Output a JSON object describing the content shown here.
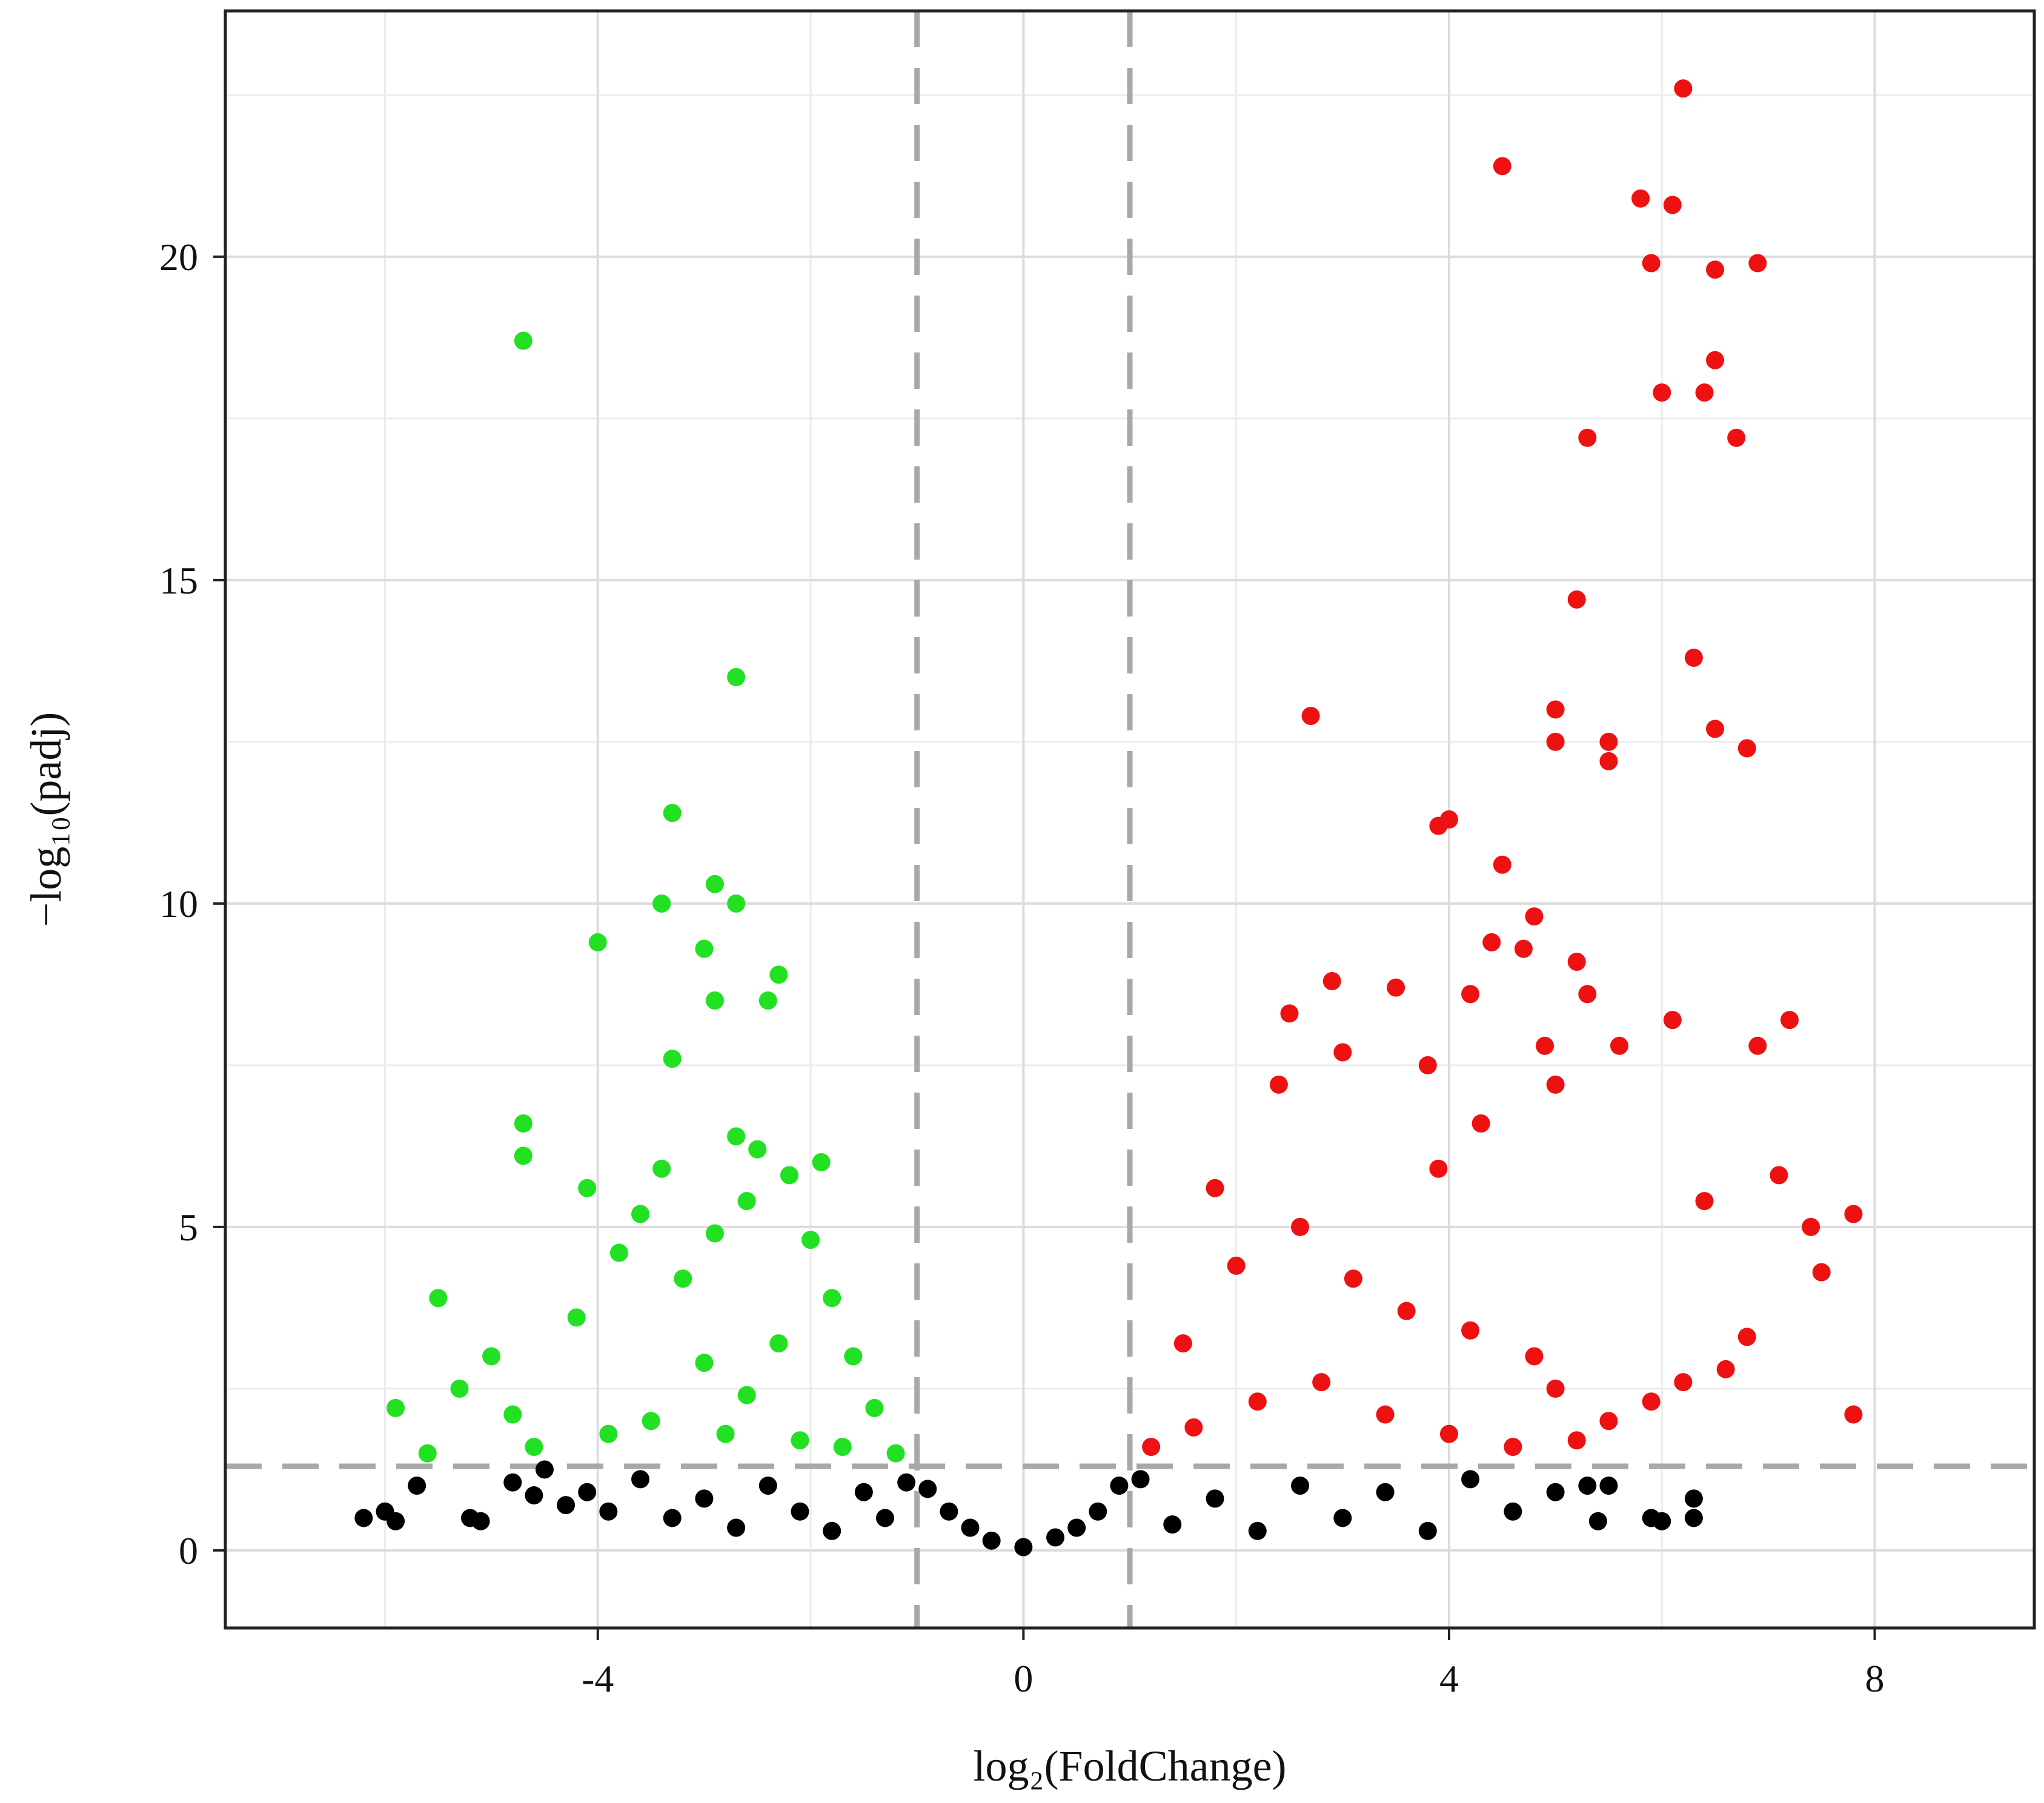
{
  "chart_data": {
    "type": "scatter",
    "title": "",
    "xlabel": "log₂(FoldChange)",
    "ylabel": "−log₁₀(padj)",
    "xlim": [
      -7.5,
      9.5
    ],
    "ylim": [
      -1.2,
      23.8
    ],
    "x_ticks": [
      -4,
      0,
      4,
      8
    ],
    "x_tick_labels": [
      "-4",
      "0",
      "4",
      "8"
    ],
    "y_ticks": [
      0,
      5,
      10,
      15,
      20
    ],
    "y_tick_labels": [
      "0",
      "5",
      "10",
      "15",
      "20"
    ],
    "grid": true,
    "legend": "none",
    "thresholds": {
      "log2fc": [
        -1,
        1
      ],
      "neg_log10_padj": 1.3
    },
    "series": [
      {
        "color": "#000000",
        "points": [
          [
            -6.2,
            0.5
          ],
          [
            -6.0,
            0.6
          ],
          [
            -5.9,
            0.45
          ],
          [
            -5.7,
            1.0
          ],
          [
            -5.2,
            0.5
          ],
          [
            -5.1,
            0.45
          ],
          [
            -4.8,
            1.05
          ],
          [
            -4.6,
            0.85
          ],
          [
            -4.5,
            1.25
          ],
          [
            -4.3,
            0.7
          ],
          [
            -4.1,
            0.9
          ],
          [
            -3.9,
            0.6
          ],
          [
            -3.6,
            1.1
          ],
          [
            -3.3,
            0.5
          ],
          [
            -3.0,
            0.8
          ],
          [
            -2.7,
            0.35
          ],
          [
            -2.4,
            1.0
          ],
          [
            -2.1,
            0.6
          ],
          [
            -1.8,
            0.3
          ],
          [
            -1.5,
            0.9
          ],
          [
            -1.3,
            0.5
          ],
          [
            -1.1,
            1.05
          ],
          [
            -0.9,
            0.95
          ],
          [
            -0.7,
            0.6
          ],
          [
            -0.5,
            0.35
          ],
          [
            -0.3,
            0.15
          ],
          [
            0.0,
            0.05
          ],
          [
            0.3,
            0.2
          ],
          [
            0.5,
            0.35
          ],
          [
            0.7,
            0.6
          ],
          [
            0.9,
            1.0
          ],
          [
            1.1,
            1.1
          ],
          [
            1.4,
            0.4
          ],
          [
            1.8,
            0.8
          ],
          [
            2.2,
            0.3
          ],
          [
            2.6,
            1.0
          ],
          [
            3.0,
            0.5
          ],
          [
            3.4,
            0.9
          ],
          [
            3.8,
            0.3
          ],
          [
            4.2,
            1.1
          ],
          [
            4.6,
            0.6
          ],
          [
            5.0,
            0.9
          ],
          [
            5.3,
            1.0
          ],
          [
            5.4,
            0.45
          ],
          [
            5.5,
            1.0
          ],
          [
            5.9,
            0.5
          ],
          [
            6.0,
            0.45
          ],
          [
            6.3,
            0.5
          ],
          [
            6.3,
            0.8
          ]
        ]
      },
      {
        "color": "#22e022",
        "points": [
          [
            -4.7,
            18.7
          ],
          [
            -2.7,
            13.5
          ],
          [
            -3.3,
            11.4
          ],
          [
            -2.9,
            10.3
          ],
          [
            -2.7,
            10.0
          ],
          [
            -3.4,
            10.0
          ],
          [
            -4.0,
            9.4
          ],
          [
            -3.0,
            9.3
          ],
          [
            -2.3,
            8.9
          ],
          [
            -2.4,
            8.5
          ],
          [
            -2.9,
            8.5
          ],
          [
            -3.3,
            7.6
          ],
          [
            -4.7,
            6.6
          ],
          [
            -4.7,
            6.1
          ],
          [
            -2.7,
            6.4
          ],
          [
            -3.4,
            5.9
          ],
          [
            -4.1,
            5.6
          ],
          [
            -5.5,
            3.9
          ],
          [
            -5.0,
            3.0
          ],
          [
            -4.2,
            3.6
          ],
          [
            -5.3,
            2.5
          ],
          [
            -5.9,
            2.2
          ],
          [
            -4.8,
            2.1
          ],
          [
            -4.6,
            1.6
          ],
          [
            -5.6,
            1.5
          ],
          [
            -3.9,
            1.8
          ],
          [
            -3.5,
            2.0
          ],
          [
            -3.8,
            4.6
          ],
          [
            -3.2,
            4.2
          ],
          [
            -2.9,
            4.9
          ],
          [
            -2.6,
            5.4
          ],
          [
            -2.2,
            5.8
          ],
          [
            -2.0,
            4.8
          ],
          [
            -1.8,
            3.9
          ],
          [
            -1.6,
            3.0
          ],
          [
            -1.4,
            2.2
          ],
          [
            -1.2,
            1.5
          ],
          [
            -2.3,
            3.2
          ],
          [
            -2.6,
            2.4
          ],
          [
            -3.0,
            2.9
          ],
          [
            -2.1,
            1.7
          ],
          [
            -1.7,
            1.6
          ],
          [
            -2.5,
            6.2
          ],
          [
            -1.9,
            6.0
          ],
          [
            -3.6,
            5.2
          ],
          [
            -2.8,
            1.8
          ]
        ]
      },
      {
        "color": "#ee1111",
        "points": [
          [
            6.2,
            22.6
          ],
          [
            4.5,
            21.4
          ],
          [
            5.8,
            20.9
          ],
          [
            6.1,
            20.8
          ],
          [
            5.9,
            19.9
          ],
          [
            6.5,
            19.8
          ],
          [
            6.9,
            19.9
          ],
          [
            6.5,
            18.4
          ],
          [
            6.0,
            17.9
          ],
          [
            6.4,
            17.9
          ],
          [
            5.3,
            17.2
          ],
          [
            6.7,
            17.2
          ],
          [
            5.2,
            14.7
          ],
          [
            6.3,
            13.8
          ],
          [
            2.7,
            12.9
          ],
          [
            5.0,
            13.0
          ],
          [
            5.0,
            12.5
          ],
          [
            5.5,
            12.5
          ],
          [
            6.5,
            12.7
          ],
          [
            6.8,
            12.4
          ],
          [
            5.5,
            12.2
          ],
          [
            4.0,
            11.3
          ],
          [
            3.9,
            11.2
          ],
          [
            4.5,
            10.6
          ],
          [
            4.8,
            9.8
          ],
          [
            5.2,
            9.1
          ],
          [
            4.4,
            9.4
          ],
          [
            4.7,
            9.3
          ],
          [
            2.9,
            8.8
          ],
          [
            3.5,
            8.7
          ],
          [
            4.2,
            8.6
          ],
          [
            5.3,
            8.6
          ],
          [
            6.1,
            8.2
          ],
          [
            7.2,
            8.2
          ],
          [
            2.5,
            8.3
          ],
          [
            4.9,
            7.8
          ],
          [
            5.6,
            7.8
          ],
          [
            6.9,
            7.8
          ],
          [
            3.0,
            7.7
          ],
          [
            3.8,
            7.5
          ],
          [
            2.4,
            7.2
          ],
          [
            5.0,
            7.2
          ],
          [
            7.1,
            5.8
          ],
          [
            6.4,
            5.4
          ],
          [
            7.4,
            5.0
          ],
          [
            7.8,
            5.2
          ],
          [
            7.5,
            4.3
          ],
          [
            7.8,
            2.1
          ],
          [
            6.8,
            3.3
          ],
          [
            6.6,
            2.8
          ],
          [
            6.2,
            2.6
          ],
          [
            5.9,
            2.3
          ],
          [
            5.5,
            2.0
          ],
          [
            5.2,
            1.7
          ],
          [
            1.5,
            3.2
          ],
          [
            2.0,
            4.4
          ],
          [
            1.8,
            5.6
          ],
          [
            2.6,
            5.0
          ],
          [
            3.1,
            4.2
          ],
          [
            3.6,
            3.7
          ],
          [
            4.2,
            3.4
          ],
          [
            4.8,
            3.0
          ],
          [
            1.2,
            1.6
          ],
          [
            1.6,
            1.9
          ],
          [
            2.2,
            2.3
          ],
          [
            2.8,
            2.6
          ],
          [
            3.4,
            2.1
          ],
          [
            4.0,
            1.8
          ],
          [
            4.6,
            1.6
          ],
          [
            5.0,
            2.5
          ],
          [
            3.9,
            5.9
          ],
          [
            4.3,
            6.6
          ]
        ]
      }
    ]
  }
}
